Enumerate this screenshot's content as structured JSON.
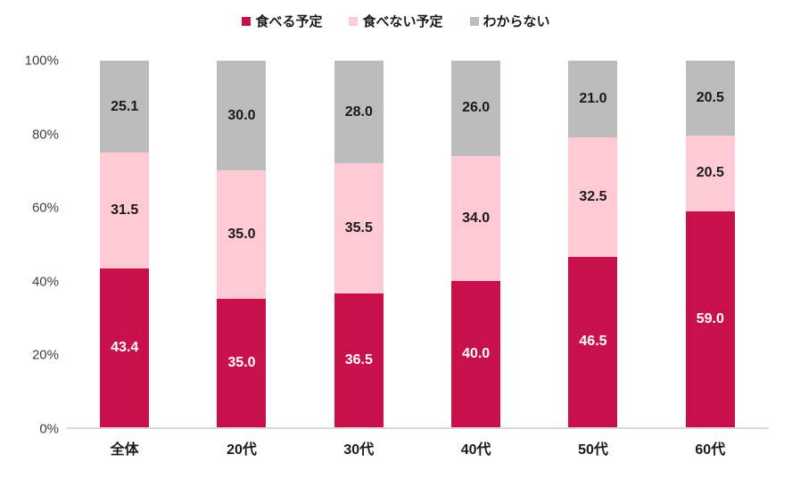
{
  "chart_data": {
    "type": "bar",
    "subtype": "stacked-100",
    "title": "",
    "categories": [
      "全体",
      "20代",
      "30代",
      "40代",
      "50代",
      "60代"
    ],
    "series": [
      {
        "name": "食べる予定",
        "color": "#c8114b",
        "label_color": "#ffffff",
        "values": [
          43.4,
          35.0,
          36.5,
          40.0,
          46.5,
          59.0
        ],
        "labels": [
          "43.4",
          "35.0",
          "36.5",
          "40.0",
          "46.5",
          "59.0"
        ]
      },
      {
        "name": "食べない予定",
        "color": "#ffcad3",
        "label_color": "#1a1a1a",
        "values": [
          31.5,
          35.0,
          35.5,
          34.0,
          32.5,
          20.5
        ],
        "labels": [
          "31.5",
          "35.0",
          "35.5",
          "34.0",
          "32.5",
          "20.5"
        ]
      },
      {
        "name": "わからない",
        "color": "#bcbcbc",
        "label_color": "#1a1a1a",
        "values": [
          25.1,
          30.0,
          28.0,
          26.0,
          21.0,
          20.5
        ],
        "labels": [
          "25.1",
          "30.0",
          "28.0",
          "26.0",
          "21.0",
          "20.5"
        ]
      }
    ],
    "y_ticks": [
      "0%",
      "20%",
      "40%",
      "60%",
      "80%",
      "100%"
    ],
    "ylim": [
      0,
      100
    ],
    "xlabel": "",
    "ylabel": "",
    "legend_position": "top",
    "gridlines": false,
    "axis_line_color": "#d9d9d9",
    "tick_label_color": "#404040",
    "background_color": "#ffffff"
  }
}
